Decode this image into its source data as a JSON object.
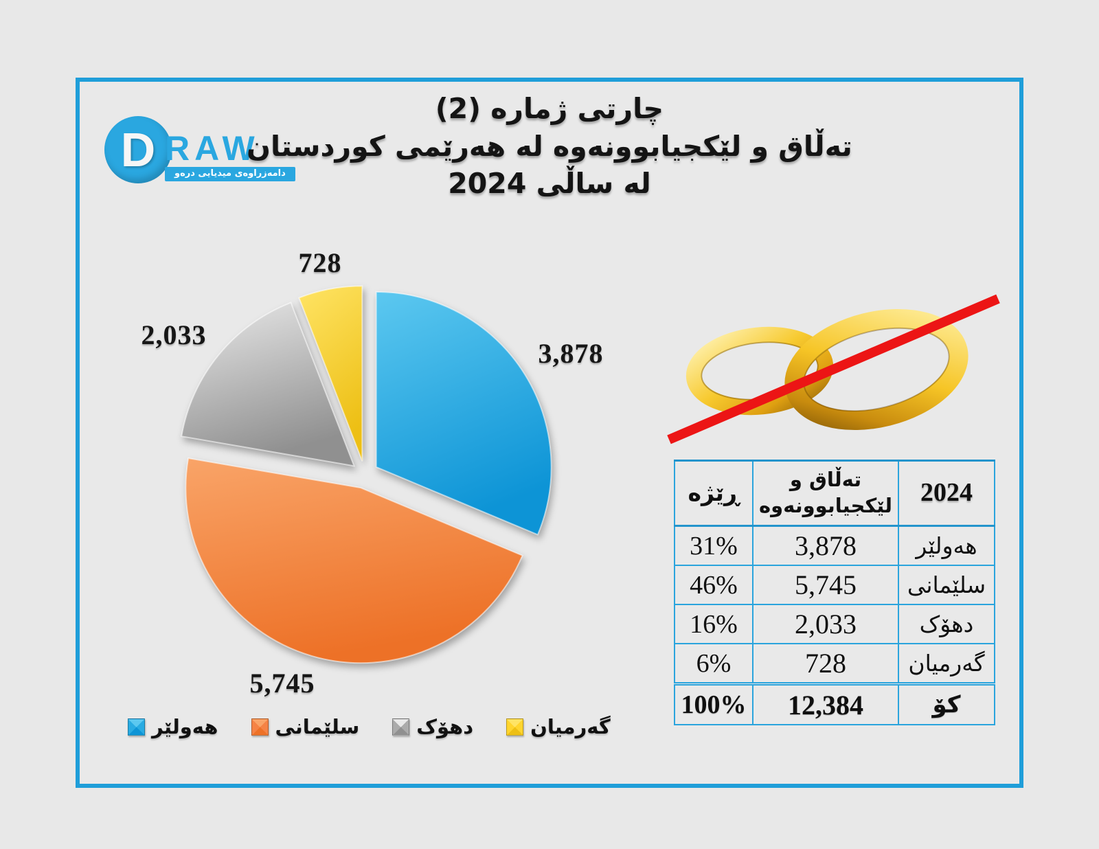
{
  "page": {
    "background": "#e8e8e8",
    "frame_border_color": "#1f9ed9"
  },
  "logo": {
    "d": "D",
    "raw": "RAW",
    "tagline": "دامەزراوەی میدیایی درەو",
    "brand_color": "#2aa7e0"
  },
  "title": {
    "line1": "چارتی ژمارە (2)",
    "line2": "تەڵاق و لێکجیابوونەوە لە هەرێمی کوردستان",
    "line3": "لە ساڵی 2024"
  },
  "chart_data": {
    "type": "pie",
    "title": "چارتی ژمارە (2) — تەڵاق و لێکجیابوونەوە لە هەرێمی کوردستان لە ساڵی 2024",
    "categories": [
      "هەولێر",
      "سلێمانی",
      "دهۆک",
      "گەرمیان"
    ],
    "values": [
      3878,
      5745,
      2033,
      728
    ],
    "labels": [
      "3,878",
      "5,745",
      "2,033",
      "728"
    ],
    "percents": [
      "31%",
      "46%",
      "16%",
      "6%"
    ],
    "total": 12384,
    "total_label": "12,384",
    "colors": [
      "#29abe2",
      "#f58345",
      "#ababab",
      "#ffd52e"
    ],
    "slice_gradients": [
      {
        "from": "#5cc8f0",
        "to": "#0d94d6"
      },
      {
        "from": "#f9a468",
        "to": "#ed7127"
      },
      {
        "from": "#e9e9e9",
        "to": "#909090"
      },
      {
        "from": "#ffe465",
        "to": "#edbf14"
      }
    ],
    "slice_keys": [
      "hawler",
      "slemani",
      "dhok",
      "garmian"
    ],
    "start_angle_deg": 0,
    "clockwise": true,
    "exploded": true,
    "legend_position": "bottom"
  },
  "table": {
    "headers": {
      "year": "2024",
      "count": "تەڵاق و لێکجیابوونەوە",
      "rate": "ڕێژە"
    },
    "total_region": "کۆ",
    "total_rate": "100%"
  },
  "rings": {
    "meaning": "crossed-out wedding rings (no marriage symbol)",
    "gold_color": "#f7ca30",
    "line_color": "#ec1515"
  }
}
